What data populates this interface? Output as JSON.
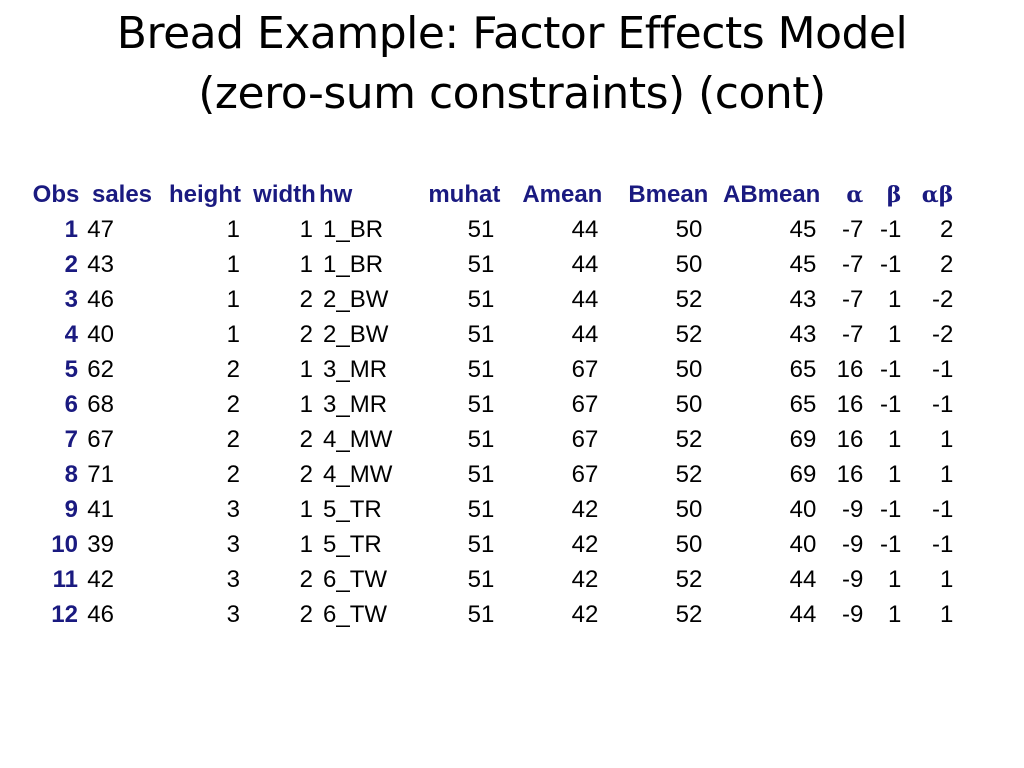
{
  "slide": {
    "title_line1": "Bread Example: Factor Effects Model",
    "title_line2": "(zero-sum constraints) (cont)",
    "header_color": "#1a1a80"
  },
  "table": {
    "headers": {
      "obs": "Obs",
      "sales": "sales",
      "height": "height",
      "width": "width",
      "hw": "hw",
      "muhat": "muhat",
      "amean": "Amean",
      "bmean": "Bmean",
      "abmean": "ABmean",
      "alpha": "α",
      "beta": "β",
      "alphabeta": "αβ"
    },
    "rows": [
      {
        "obs": "1",
        "sales": "47",
        "height": "1",
        "width": "1",
        "hw": "1_BR",
        "muhat": "51",
        "amean": "44",
        "bmean": "50",
        "abmean": "45",
        "alpha": "-7",
        "beta": "-1",
        "alphabeta": "2"
      },
      {
        "obs": "2",
        "sales": "43",
        "height": "1",
        "width": "1",
        "hw": "1_BR",
        "muhat": "51",
        "amean": "44",
        "bmean": "50",
        "abmean": "45",
        "alpha": "-7",
        "beta": "-1",
        "alphabeta": "2"
      },
      {
        "obs": "3",
        "sales": "46",
        "height": "1",
        "width": "2",
        "hw": "2_BW",
        "muhat": "51",
        "amean": "44",
        "bmean": "52",
        "abmean": "43",
        "alpha": "-7",
        "beta": "1",
        "alphabeta": "-2"
      },
      {
        "obs": "4",
        "sales": "40",
        "height": "1",
        "width": "2",
        "hw": "2_BW",
        "muhat": "51",
        "amean": "44",
        "bmean": "52",
        "abmean": "43",
        "alpha": "-7",
        "beta": "1",
        "alphabeta": "-2"
      },
      {
        "obs": "5",
        "sales": "62",
        "height": "2",
        "width": "1",
        "hw": "3_MR",
        "muhat": "51",
        "amean": "67",
        "bmean": "50",
        "abmean": "65",
        "alpha": "16",
        "beta": "-1",
        "alphabeta": "-1"
      },
      {
        "obs": "6",
        "sales": "68",
        "height": "2",
        "width": "1",
        "hw": "3_MR",
        "muhat": "51",
        "amean": "67",
        "bmean": "50",
        "abmean": "65",
        "alpha": "16",
        "beta": "-1",
        "alphabeta": "-1"
      },
      {
        "obs": "7",
        "sales": "67",
        "height": "2",
        "width": "2",
        "hw": "4_MW",
        "muhat": "51",
        "amean": "67",
        "bmean": "52",
        "abmean": "69",
        "alpha": "16",
        "beta": "1",
        "alphabeta": "1"
      },
      {
        "obs": "8",
        "sales": "71",
        "height": "2",
        "width": "2",
        "hw": "4_MW",
        "muhat": "51",
        "amean": "67",
        "bmean": "52",
        "abmean": "69",
        "alpha": "16",
        "beta": "1",
        "alphabeta": "1"
      },
      {
        "obs": "9",
        "sales": "41",
        "height": "3",
        "width": "1",
        "hw": "5_TR",
        "muhat": "51",
        "amean": "42",
        "bmean": "50",
        "abmean": "40",
        "alpha": "-9",
        "beta": "-1",
        "alphabeta": "-1"
      },
      {
        "obs": "10",
        "sales": "39",
        "height": "3",
        "width": "1",
        "hw": "5_TR",
        "muhat": "51",
        "amean": "42",
        "bmean": "50",
        "abmean": "40",
        "alpha": "-9",
        "beta": "-1",
        "alphabeta": "-1"
      },
      {
        "obs": "11",
        "sales": "42",
        "height": "3",
        "width": "2",
        "hw": "6_TW",
        "muhat": "51",
        "amean": "42",
        "bmean": "52",
        "abmean": "44",
        "alpha": "-9",
        "beta": "1",
        "alphabeta": "1"
      },
      {
        "obs": "12",
        "sales": "46",
        "height": "3",
        "width": "2",
        "hw": "6_TW",
        "muhat": "51",
        "amean": "42",
        "bmean": "52",
        "abmean": "44",
        "alpha": "-9",
        "beta": "1",
        "alphabeta": "1"
      }
    ]
  }
}
